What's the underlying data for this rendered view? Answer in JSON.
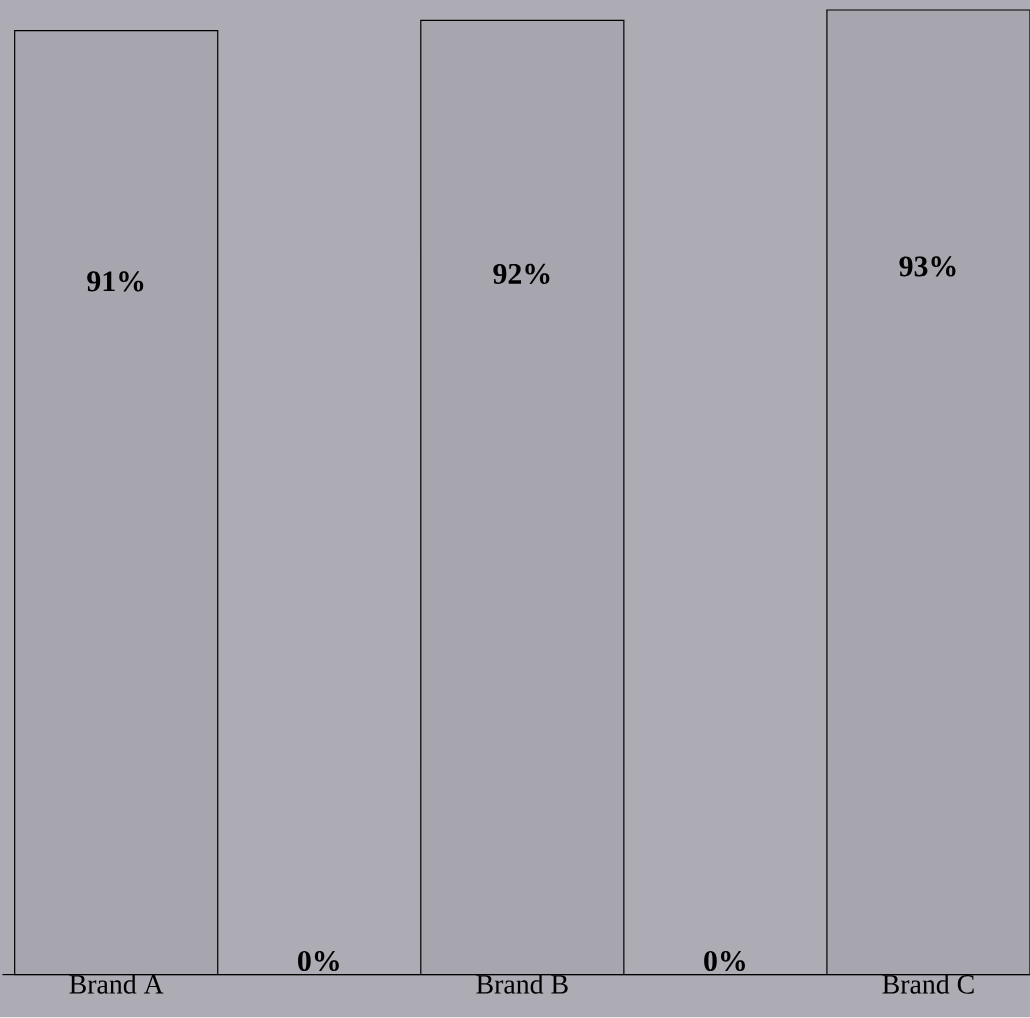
{
  "chart_data": {
    "type": "bar",
    "categories": [
      "Brand A",
      null,
      "Brand B",
      null,
      "Brand C"
    ],
    "values": [
      91,
      0,
      92,
      0,
      93
    ],
    "value_labels": [
      "91%",
      "0%",
      "92%",
      "0%",
      "93%"
    ],
    "color": "#a7a5ae"
  }
}
